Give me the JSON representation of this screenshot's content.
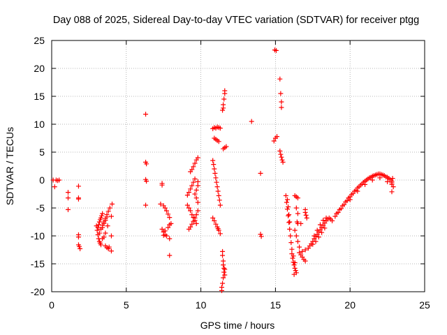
{
  "chart_data": {
    "type": "scatter",
    "title": "Day 088 of 2025, Sidereal Day-to-day VTEC variation (SDTVAR) for receiver ptgg",
    "xlabel": "GPS time / hours",
    "ylabel": "SDTVAR / TECUs",
    "xlim": [
      0,
      25
    ],
    "ylim": [
      -20,
      25
    ],
    "xticks": [
      "0",
      "5",
      "10",
      "15",
      "20",
      "25"
    ],
    "yticks": [
      "-20",
      "-15",
      "-10",
      "-5",
      "0",
      "5",
      "10",
      "15",
      "20",
      "25"
    ],
    "grid": true,
    "marker": "+",
    "color": "#ff0000",
    "series": [
      {
        "name": "sdtvar",
        "points": [
          [
            0.1,
            0.0
          ],
          [
            0.2,
            -1.2
          ],
          [
            0.3,
            0.0
          ],
          [
            0.4,
            -0.1
          ],
          [
            0.5,
            0.0
          ],
          [
            1.1,
            -2.2
          ],
          [
            1.1,
            -3.2
          ],
          [
            1.1,
            -5.3
          ],
          [
            1.8,
            -1.1
          ],
          [
            1.8,
            -3.2
          ],
          [
            1.8,
            -3.4
          ],
          [
            1.8,
            -9.8
          ],
          [
            1.8,
            -10.2
          ],
          [
            1.8,
            -11.6
          ],
          [
            1.85,
            -11.9
          ],
          [
            1.9,
            -12.3
          ],
          [
            3.0,
            -8.2
          ],
          [
            3.05,
            -9.0
          ],
          [
            3.1,
            -9.8
          ],
          [
            3.15,
            -10.5
          ],
          [
            3.2,
            -11.0
          ],
          [
            3.25,
            -11.3
          ],
          [
            3.3,
            -11.6
          ],
          [
            3.1,
            -8.5
          ],
          [
            3.15,
            -8.0
          ],
          [
            3.2,
            -7.5
          ],
          [
            3.25,
            -7.1
          ],
          [
            3.3,
            -6.8
          ],
          [
            3.35,
            -6.4
          ],
          [
            3.4,
            -6.0
          ],
          [
            3.2,
            -9.5
          ],
          [
            3.3,
            -8.8
          ],
          [
            3.4,
            -8.1
          ],
          [
            3.5,
            -7.5
          ],
          [
            3.6,
            -6.9
          ],
          [
            3.7,
            -6.2
          ],
          [
            3.8,
            -5.6
          ],
          [
            3.9,
            -5.0
          ],
          [
            3.4,
            -10.5
          ],
          [
            3.5,
            -10.2
          ],
          [
            3.6,
            -9.5
          ],
          [
            3.4,
            -8.5
          ],
          [
            3.5,
            -7.8
          ],
          [
            3.6,
            -7.2
          ],
          [
            3.7,
            -6.6
          ],
          [
            3.6,
            -11.8
          ],
          [
            3.7,
            -12.1
          ],
          [
            3.8,
            -12.3
          ],
          [
            3.85,
            -12.0
          ],
          [
            3.75,
            -8.2
          ],
          [
            4.0,
            -6.5
          ],
          [
            4.0,
            -10.0
          ],
          [
            4.0,
            -12.7
          ],
          [
            4.05,
            -4.3
          ],
          [
            6.3,
            11.8
          ],
          [
            6.3,
            3.2
          ],
          [
            6.35,
            2.9
          ],
          [
            6.3,
            0.1
          ],
          [
            6.35,
            -0.2
          ],
          [
            6.3,
            -4.5
          ],
          [
            7.4,
            -0.6
          ],
          [
            7.4,
            -0.9
          ],
          [
            7.3,
            -4.3
          ],
          [
            7.5,
            -4.6
          ],
          [
            7.6,
            -5.0
          ],
          [
            7.7,
            -5.5
          ],
          [
            7.8,
            -6.1
          ],
          [
            7.9,
            -6.7
          ],
          [
            7.4,
            -8.8
          ],
          [
            7.5,
            -9.3
          ],
          [
            7.6,
            -9.8
          ],
          [
            7.7,
            -10.0
          ],
          [
            7.8,
            -8.5
          ],
          [
            7.9,
            -8.0
          ],
          [
            8.0,
            -7.8
          ],
          [
            7.5,
            -9.9
          ],
          [
            7.9,
            -10.5
          ],
          [
            7.9,
            -13.5
          ],
          [
            7.6,
            -9.1
          ],
          [
            9.1,
            -2.7
          ],
          [
            9.2,
            -2.2
          ],
          [
            9.3,
            -1.6
          ],
          [
            9.4,
            -1.0
          ],
          [
            9.5,
            -0.4
          ],
          [
            9.6,
            0.2
          ],
          [
            9.1,
            -4.5
          ],
          [
            9.2,
            -5.0
          ],
          [
            9.3,
            -5.5
          ],
          [
            9.4,
            -6.2
          ],
          [
            9.5,
            -6.7
          ],
          [
            9.6,
            -7.2
          ],
          [
            9.7,
            -7.8
          ],
          [
            9.3,
            1.5
          ],
          [
            9.4,
            1.9
          ],
          [
            9.5,
            2.4
          ],
          [
            9.6,
            3.0
          ],
          [
            9.7,
            3.6
          ],
          [
            9.8,
            4.0
          ],
          [
            9.2,
            -8.8
          ],
          [
            9.3,
            -8.4
          ],
          [
            9.4,
            -7.9
          ],
          [
            9.5,
            -7.4
          ],
          [
            9.6,
            -6.8
          ],
          [
            9.7,
            -6.2
          ],
          [
            9.8,
            -5.5
          ],
          [
            9.6,
            -2.5
          ],
          [
            9.7,
            -1.8
          ],
          [
            9.8,
            -1.0
          ],
          [
            9.8,
            -0.3
          ],
          [
            9.7,
            -3.2
          ],
          [
            9.8,
            -4.0
          ],
          [
            10.8,
            9.2
          ],
          [
            10.9,
            9.4
          ],
          [
            11.0,
            9.3
          ],
          [
            11.1,
            9.5
          ],
          [
            11.2,
            9.4
          ],
          [
            11.3,
            9.3
          ],
          [
            10.9,
            7.5
          ],
          [
            11.0,
            7.3
          ],
          [
            11.1,
            7.1
          ],
          [
            11.2,
            6.9
          ],
          [
            10.8,
            3.5
          ],
          [
            10.85,
            2.8
          ],
          [
            10.9,
            2.0
          ],
          [
            10.95,
            1.2
          ],
          [
            11.0,
            0.4
          ],
          [
            11.05,
            -0.4
          ],
          [
            11.1,
            -1.2
          ],
          [
            11.15,
            -2.0
          ],
          [
            11.2,
            -2.8
          ],
          [
            11.25,
            -3.6
          ],
          [
            11.3,
            -4.5
          ],
          [
            10.8,
            -6.8
          ],
          [
            10.9,
            -7.3
          ],
          [
            11.0,
            -7.9
          ],
          [
            11.1,
            -8.4
          ],
          [
            11.2,
            -9.0
          ],
          [
            11.3,
            -9.6
          ],
          [
            11.15,
            -8.7
          ],
          [
            11.45,
            -12.8
          ],
          [
            11.45,
            -13.5
          ],
          [
            11.5,
            -14.5
          ],
          [
            11.5,
            -15.2
          ],
          [
            11.55,
            -15.8
          ],
          [
            11.55,
            -16.5
          ],
          [
            11.5,
            -17.5
          ],
          [
            11.45,
            -18.5
          ],
          [
            11.4,
            -19.2
          ],
          [
            11.4,
            -19.8
          ],
          [
            11.6,
            -16.0
          ],
          [
            11.6,
            -17.0
          ],
          [
            11.45,
            12.5
          ],
          [
            11.5,
            13.5
          ],
          [
            11.55,
            14.5
          ],
          [
            11.6,
            15.5
          ],
          [
            11.6,
            16.0
          ],
          [
            11.5,
            12.9
          ],
          [
            11.5,
            5.6
          ],
          [
            11.6,
            5.8
          ],
          [
            11.7,
            6.0
          ],
          [
            13.4,
            10.5
          ],
          [
            14.0,
            1.2
          ],
          [
            14.0,
            -9.7
          ],
          [
            14.05,
            -10.1
          ],
          [
            14.9,
            7.0
          ],
          [
            15.0,
            7.5
          ],
          [
            15.1,
            7.8
          ],
          [
            14.95,
            23.3
          ],
          [
            15.05,
            23.2
          ],
          [
            15.3,
            18.1
          ],
          [
            15.35,
            15.5
          ],
          [
            15.4,
            14.0
          ],
          [
            15.4,
            13.0
          ],
          [
            15.3,
            5.2
          ],
          [
            15.35,
            4.6
          ],
          [
            15.4,
            4.1
          ],
          [
            15.45,
            3.6
          ],
          [
            15.5,
            3.2
          ],
          [
            15.7,
            -2.8
          ],
          [
            15.75,
            -4.0
          ],
          [
            15.8,
            -5.2
          ],
          [
            15.85,
            -6.4
          ],
          [
            15.9,
            -7.6
          ],
          [
            15.95,
            -8.8
          ],
          [
            16.0,
            -10.0
          ],
          [
            16.05,
            -11.2
          ],
          [
            16.1,
            -12.4
          ],
          [
            15.8,
            -3.5
          ],
          [
            15.85,
            -4.8
          ],
          [
            15.9,
            -6.2
          ],
          [
            15.95,
            -7.5
          ],
          [
            16.1,
            -13.2
          ],
          [
            16.15,
            -14.0
          ],
          [
            16.2,
            -14.7
          ],
          [
            16.25,
            -15.2
          ],
          [
            16.3,
            -15.8
          ],
          [
            16.35,
            -16.2
          ],
          [
            16.4,
            -16.6
          ],
          [
            16.3,
            -14.8
          ],
          [
            16.2,
            -13.6
          ],
          [
            16.25,
            -16.9
          ],
          [
            16.3,
            -2.8
          ],
          [
            16.4,
            -3.0
          ],
          [
            16.5,
            -3.2
          ],
          [
            16.4,
            -5.0
          ],
          [
            16.5,
            -6.0
          ],
          [
            16.45,
            -7.5
          ],
          [
            16.3,
            -9.0
          ],
          [
            16.4,
            -10.0
          ],
          [
            16.5,
            -11.0
          ],
          [
            16.6,
            -12.0
          ],
          [
            16.5,
            -7.8
          ],
          [
            16.6,
            -13.0
          ],
          [
            16.7,
            -13.4
          ],
          [
            16.8,
            -13.8
          ],
          [
            16.9,
            -14.2
          ],
          [
            17.0,
            -14.5
          ],
          [
            16.8,
            -12.8
          ],
          [
            17.0,
            -12.5
          ],
          [
            16.7,
            -7.8
          ],
          [
            17.0,
            -5.8
          ],
          [
            17.05,
            -6.3
          ],
          [
            17.1,
            -6.8
          ],
          [
            17.0,
            -5.3
          ],
          [
            17.2,
            -12.2
          ],
          [
            17.3,
            -11.8
          ],
          [
            17.4,
            -11.4
          ],
          [
            17.5,
            -11.0
          ],
          [
            17.6,
            -10.5
          ],
          [
            17.7,
            -10.1
          ],
          [
            17.8,
            -9.7
          ],
          [
            17.9,
            -9.3
          ],
          [
            18.0,
            -8.9
          ],
          [
            18.1,
            -8.5
          ],
          [
            18.2,
            -8.1
          ],
          [
            18.3,
            -7.7
          ],
          [
            18.4,
            -7.3
          ],
          [
            18.5,
            -7.0
          ],
          [
            18.6,
            -6.8
          ],
          [
            18.7,
            -7.0
          ],
          [
            18.8,
            -7.3
          ],
          [
            17.6,
            -10.0
          ],
          [
            17.8,
            -9.0
          ],
          [
            18.0,
            -8.0
          ],
          [
            18.2,
            -7.2
          ],
          [
            18.4,
            -6.8
          ],
          [
            17.5,
            -11.5
          ],
          [
            17.7,
            -11.0
          ],
          [
            17.9,
            -10.2
          ],
          [
            18.1,
            -9.4
          ],
          [
            18.3,
            -8.6
          ],
          [
            19.0,
            -6.5
          ],
          [
            19.2,
            -5.8
          ],
          [
            19.4,
            -5.1
          ],
          [
            19.6,
            -4.4
          ],
          [
            19.8,
            -3.7
          ],
          [
            20.0,
            -3.0
          ],
          [
            20.2,
            -2.4
          ],
          [
            20.4,
            -1.8
          ],
          [
            20.6,
            -1.2
          ],
          [
            20.8,
            -0.7
          ],
          [
            21.0,
            -0.2
          ],
          [
            21.2,
            0.2
          ],
          [
            21.4,
            0.5
          ],
          [
            21.6,
            0.8
          ],
          [
            21.8,
            1.0
          ],
          [
            22.0,
            1.1
          ],
          [
            22.2,
            0.9
          ],
          [
            22.4,
            0.6
          ],
          [
            22.6,
            0.3
          ],
          [
            22.8,
            -0.2
          ],
          [
            19.1,
            -6.0
          ],
          [
            19.3,
            -5.3
          ],
          [
            19.5,
            -4.6
          ],
          [
            19.7,
            -3.9
          ],
          [
            19.9,
            -3.2
          ],
          [
            20.1,
            -2.6
          ],
          [
            20.3,
            -2.0
          ],
          [
            20.5,
            -1.4
          ],
          [
            20.7,
            -0.9
          ],
          [
            20.9,
            -0.4
          ],
          [
            21.1,
            0.0
          ],
          [
            21.3,
            0.4
          ],
          [
            21.5,
            0.7
          ],
          [
            21.7,
            0.9
          ],
          [
            21.9,
            1.1
          ],
          [
            22.1,
            1.0
          ],
          [
            22.3,
            0.8
          ],
          [
            22.5,
            0.5
          ],
          [
            22.7,
            0.1
          ],
          [
            22.8,
            -0.5
          ],
          [
            20.0,
            -3.5
          ],
          [
            20.5,
            -2.0
          ],
          [
            21.0,
            -0.8
          ],
          [
            21.5,
            0.0
          ],
          [
            22.0,
            0.4
          ],
          [
            22.5,
            -0.3
          ],
          [
            22.8,
            -0.8
          ],
          [
            22.8,
            -2.1
          ],
          [
            22.9,
            -1.2
          ],
          [
            22.85,
            0.3
          ]
        ]
      }
    ]
  }
}
